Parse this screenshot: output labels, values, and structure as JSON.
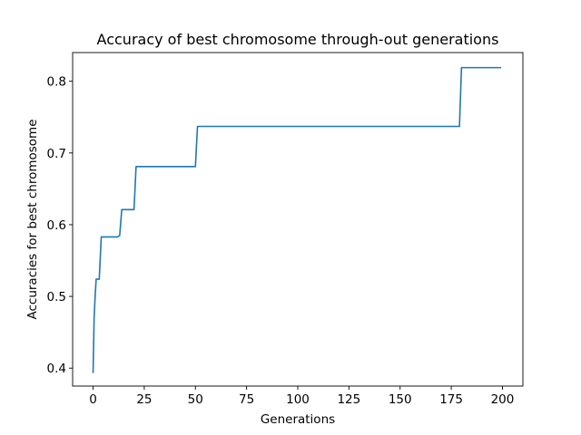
{
  "chart_data": {
    "type": "line",
    "title": "Accuracy of best chromosome through-out generations",
    "xlabel": "Generations",
    "ylabel": "Accuracies for best chromosome",
    "xlim": [
      -10,
      210
    ],
    "ylim": [
      0.375,
      0.84
    ],
    "xticks": [
      0,
      25,
      50,
      75,
      100,
      125,
      150,
      175,
      200
    ],
    "yticks": [
      0.4,
      0.5,
      0.6,
      0.7,
      0.8
    ],
    "grid": false,
    "legend": "none",
    "line_color": "#1f77b4",
    "series": [
      {
        "x": [
          0,
          0.5,
          1,
          1.5,
          2,
          3,
          4,
          5,
          12,
          13,
          14,
          20,
          21,
          50,
          51,
          179,
          180,
          199
        ],
        "y": [
          0.394,
          0.47,
          0.5,
          0.524,
          0.524,
          0.524,
          0.583,
          0.583,
          0.583,
          0.585,
          0.621,
          0.621,
          0.681,
          0.681,
          0.737,
          0.737,
          0.819,
          0.819
        ]
      }
    ]
  }
}
